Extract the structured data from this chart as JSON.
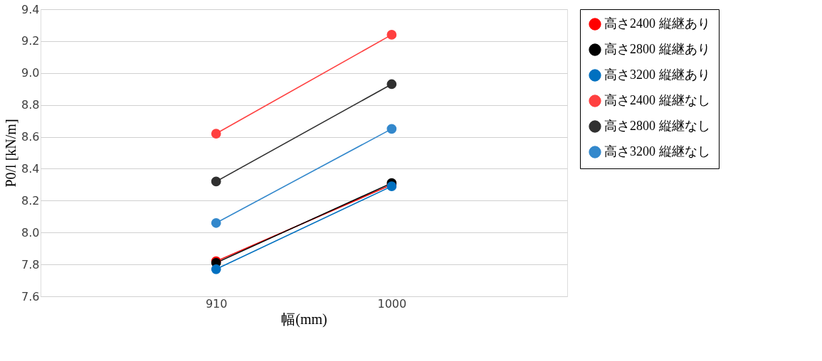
{
  "chart_data": {
    "type": "line",
    "xlabel": "幅(mm)",
    "ylabel": "P0/l [kN/m]",
    "categories": [
      "910",
      "1000"
    ],
    "series": [
      {
        "name": "高さ2400 縦継あり",
        "color": "#ff0000",
        "values": [
          7.82,
          8.3
        ]
      },
      {
        "name": "高さ2800 縦継あり",
        "color": "#000000",
        "values": [
          7.81,
          8.31
        ]
      },
      {
        "name": "高さ3200 縦継あり",
        "color": "#0070c0",
        "values": [
          7.77,
          8.29
        ]
      },
      {
        "name": "高さ2400 縦継なし",
        "color": "#ff4040",
        "values": [
          8.62,
          9.24
        ]
      },
      {
        "name": "高さ2800 縦継なし",
        "color": "#303030",
        "values": [
          8.32,
          8.93
        ]
      },
      {
        "name": "高さ3200 縦継なし",
        "color": "#3388cc",
        "values": [
          8.06,
          8.65
        ]
      }
    ],
    "ylim": [
      7.6,
      9.4
    ],
    "yticks": [
      7.6,
      7.8,
      {
        "value": 8,
        "label": "8.0"
      },
      8.2,
      8.4,
      8.6,
      8.8,
      {
        "value": 9,
        "label": "9.0"
      },
      9.2,
      9.4
    ],
    "grid": "y",
    "legend": "right",
    "marker": "circle"
  }
}
